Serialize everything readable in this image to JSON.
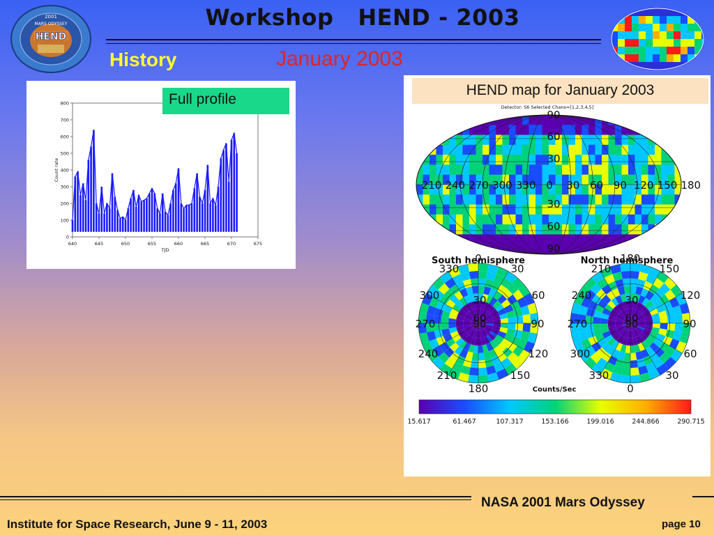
{
  "header": {
    "title": "Workshop   HEND - 2003",
    "section": "History",
    "subtitle": "January 2003"
  },
  "logo": {
    "text": [
      "2001",
      "MARS ODYSSEY",
      "HEND"
    ],
    "icon": "hend-mission-emblem"
  },
  "mars_thumbnail": {
    "icon": "mars-global-map-thumbnail"
  },
  "profile": {
    "label": "Full profile",
    "chart_data": {
      "type": "line",
      "xlabel": "TJD",
      "ylabel": "Count rate",
      "xlim": [
        640,
        675
      ],
      "ylim": [
        0,
        800
      ],
      "xticks": [
        640,
        645,
        650,
        655,
        660,
        665,
        670,
        675
      ],
      "yticks": [
        0,
        100,
        200,
        300,
        400,
        500,
        600,
        700,
        800
      ],
      "series": [
        {
          "color": "#1a1aff",
          "x": [
            640.0,
            640.5,
            641.0,
            641.5,
            642.0,
            642.5,
            643.0,
            643.5,
            644.0,
            644.5,
            645.0,
            645.5,
            646.0,
            646.5,
            647.0,
            647.5,
            648.0,
            648.5,
            649.0,
            649.5,
            650.0,
            650.5,
            651.0,
            651.5,
            652.0,
            652.5,
            653.0,
            653.5,
            654.0,
            654.5,
            655.0,
            655.5,
            656.0,
            656.5,
            657.0,
            657.5,
            658.0,
            658.5,
            659.0,
            659.5,
            660.0,
            660.5,
            661.0,
            661.5,
            662.0,
            662.5,
            663.0,
            663.5,
            664.0,
            664.5,
            665.0,
            665.5,
            666.0,
            666.5,
            667.0,
            667.5,
            668.0,
            668.5,
            669.0,
            669.5,
            670.0,
            670.5,
            671.0
          ],
          "y": [
            100,
            360,
            390,
            250,
            320,
            220,
            460,
            540,
            640,
            200,
            140,
            300,
            140,
            200,
            170,
            380,
            240,
            160,
            110,
            120,
            100,
            170,
            230,
            280,
            180,
            250,
            210,
            220,
            230,
            260,
            290,
            260,
            170,
            140,
            260,
            150,
            130,
            200,
            280,
            320,
            410,
            200,
            170,
            190,
            190,
            200,
            290,
            380,
            240,
            200,
            280,
            430,
            200,
            230,
            190,
            300,
            470,
            520,
            560,
            330,
            580,
            620,
            500
          ]
        }
      ]
    }
  },
  "map": {
    "title": "HEND map for January 2003",
    "detector_line": "Detector: S6 Selected Chans=[1,2,3,4,5]",
    "global": {
      "lon_labels": [
        "210",
        "240",
        "270",
        "300",
        "330",
        "0",
        "30",
        "60",
        "90",
        "120",
        "150",
        "180"
      ],
      "lat_labels": [
        "90",
        "60",
        "30",
        "30",
        "60",
        "90"
      ]
    },
    "south": {
      "caption": "South hemisphere",
      "labels": [
        "0",
        "330",
        "30",
        "300",
        "60",
        "270",
        "90",
        "240",
        "120",
        "210",
        "150",
        "180",
        "30",
        "60",
        "90"
      ]
    },
    "north": {
      "caption": "North hemisphere",
      "labels": [
        "180",
        "210",
        "150",
        "240",
        "120",
        "270",
        "90",
        "300",
        "60",
        "330",
        "30",
        "0",
        "30",
        "60",
        "90"
      ]
    },
    "colorbar": {
      "label": "Counts/Sec",
      "ticks": [
        "15.617",
        "61.467",
        "107.317",
        "153.166",
        "199.016",
        "244.866",
        "290.715"
      ],
      "colors": [
        "#5a00b0",
        "#1a4cff",
        "#00c8ff",
        "#00d27a",
        "#e8ff00",
        "#ffae00",
        "#ff1a1a"
      ]
    }
  },
  "footer": {
    "right": "NASA 2001 Mars Odyssey",
    "left": "Institute for Space Research, June 9 - 11, 2003",
    "page": "page 10"
  }
}
